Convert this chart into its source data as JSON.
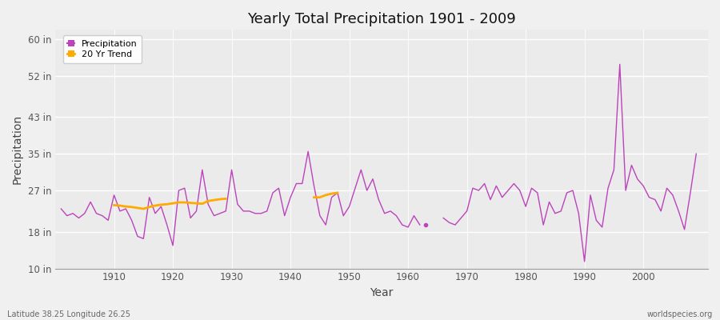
{
  "title": "Yearly Total Precipitation 1901 - 2009",
  "xlabel": "Year",
  "ylabel": "Precipitation",
  "bottom_left_label": "Latitude 38.25 Longitude 26.25",
  "bottom_right_label": "worldspecies.org",
  "ylim": [
    10,
    62
  ],
  "yticks": [
    10,
    18,
    27,
    35,
    43,
    52,
    60
  ],
  "ytick_labels": [
    "10 in",
    "18 in",
    "27 in",
    "35 in",
    "43 in",
    "52 in",
    "60 in"
  ],
  "fig_bg_color": "#f0f0f0",
  "plot_bg_color": "#ebebeb",
  "line_color": "#bb44bb",
  "trend_color": "#ffaa00",
  "xlim": [
    1900,
    2011
  ],
  "xtick_positions": [
    1910,
    1920,
    1930,
    1940,
    1950,
    1960,
    1970,
    1980,
    1990,
    2000
  ],
  "years": [
    1901,
    1902,
    1903,
    1904,
    1905,
    1906,
    1907,
    1908,
    1909,
    1910,
    1911,
    1912,
    1913,
    1914,
    1915,
    1916,
    1917,
    1918,
    1919,
    1920,
    1921,
    1922,
    1923,
    1924,
    1925,
    1926,
    1927,
    1928,
    1929,
    1930,
    1931,
    1932,
    1933,
    1934,
    1935,
    1936,
    1937,
    1938,
    1939,
    1940,
    1941,
    1942,
    1943,
    1944,
    1945,
    1946,
    1947,
    1948,
    1949,
    1950,
    1951,
    1952,
    1953,
    1954,
    1955,
    1956,
    1957,
    1958,
    1959,
    1960,
    1961,
    1962,
    1963,
    1964,
    1965,
    1966,
    1967,
    1968,
    1969,
    1970,
    1971,
    1972,
    1973,
    1974,
    1975,
    1976,
    1977,
    1978,
    1979,
    1980,
    1981,
    1982,
    1983,
    1984,
    1985,
    1986,
    1987,
    1988,
    1989,
    1990,
    1991,
    1992,
    1993,
    1994,
    1995,
    1996,
    1997,
    1998,
    1999,
    2000,
    2001,
    2002,
    2003,
    2004,
    2005,
    2006,
    2007,
    2008,
    2009
  ],
  "precip": [
    23.0,
    21.5,
    22.0,
    21.0,
    22.0,
    24.5,
    22.0,
    21.5,
    20.5,
    26.0,
    22.5,
    23.0,
    20.5,
    17.0,
    16.5,
    25.5,
    22.0,
    23.5,
    19.5,
    15.0,
    27.0,
    27.5,
    21.0,
    22.5,
    31.5,
    24.0,
    21.5,
    22.0,
    22.5,
    31.5,
    24.0,
    22.5,
    22.5,
    22.0,
    22.0,
    22.5,
    26.5,
    27.5,
    21.5,
    25.5,
    28.5,
    28.5,
    35.5,
    28.0,
    21.5,
    19.5,
    25.5,
    26.5,
    21.5,
    23.5,
    27.5,
    31.5,
    27.0,
    29.5,
    25.0,
    22.0,
    22.5,
    21.5,
    19.5,
    19.0,
    21.5,
    19.5,
    null,
    null,
    null,
    21.0,
    20.0,
    19.5,
    21.0,
    22.5,
    27.5,
    27.0,
    28.5,
    25.0,
    28.0,
    25.5,
    27.0,
    28.5,
    27.0,
    23.5,
    27.5,
    26.5,
    19.5,
    24.5,
    22.0,
    22.5,
    26.5,
    27.0,
    22.0,
    11.5,
    26.0,
    20.5,
    19.0,
    27.5,
    31.5,
    54.5,
    27.0,
    32.5,
    29.5,
    28.0,
    25.5,
    25.0,
    22.5,
    27.5,
    26.0,
    22.5,
    18.5,
    26.5,
    35.0
  ],
  "isolated_dot_year": 1963,
  "isolated_dot_value": 19.5,
  "trend_years": [
    1910,
    1911,
    1912,
    1913,
    1914,
    1915,
    1916,
    1917,
    1918,
    1919,
    1920,
    1921,
    1922,
    1923,
    1924,
    1925,
    1926,
    1927,
    1928,
    1929,
    1944,
    1945,
    1946,
    1947,
    1948
  ],
  "trend_values": [
    23.8,
    23.7,
    23.5,
    23.4,
    23.2,
    23.0,
    23.4,
    23.7,
    23.9,
    24.0,
    24.2,
    24.4,
    24.4,
    24.3,
    24.2,
    24.1,
    24.7,
    24.9,
    25.1,
    25.2,
    25.5,
    25.5,
    26.0,
    26.3,
    26.5
  ]
}
